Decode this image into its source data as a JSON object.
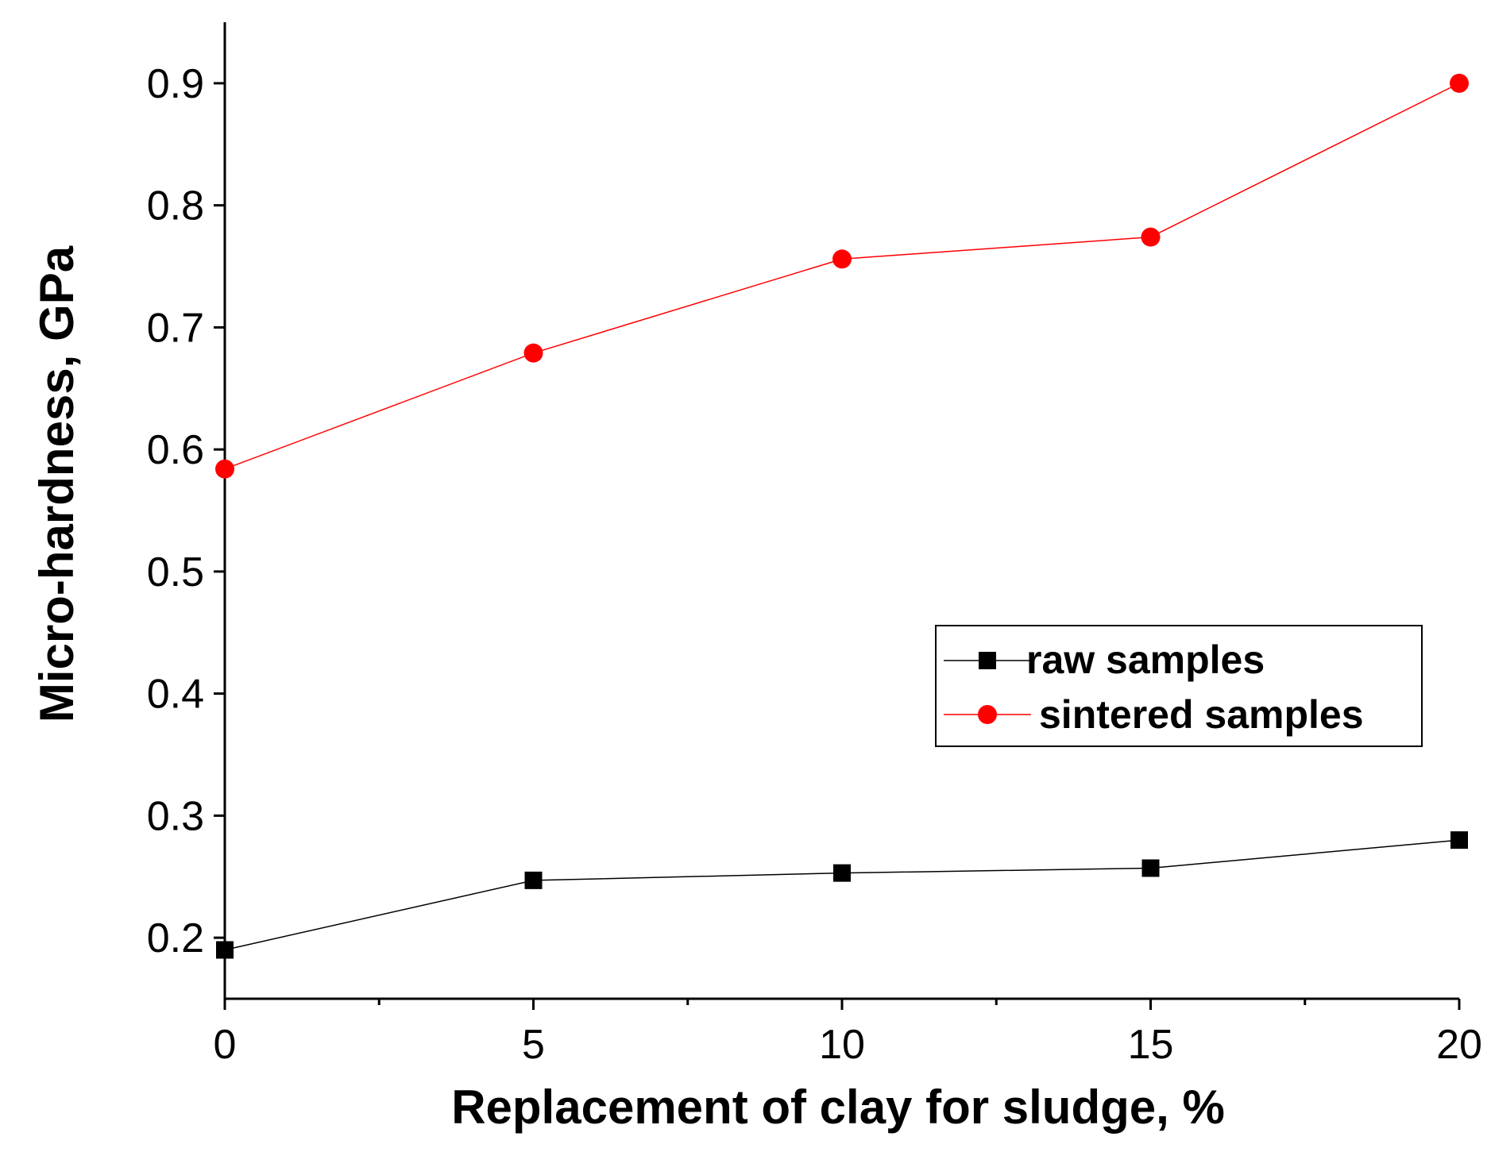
{
  "chart_data": {
    "type": "line",
    "title": "",
    "xlabel": "Replacement of clay for sludge, %",
    "ylabel": "Micro-hardness, GPa",
    "x": [
      0,
      5,
      10,
      15,
      20
    ],
    "xlim": [
      0,
      20
    ],
    "ylim": [
      0.15,
      0.95
    ],
    "x_ticks": [
      0,
      5,
      10,
      15,
      20
    ],
    "x_tick_labels": [
      "0",
      "5",
      "10",
      "15",
      "20"
    ],
    "x_minor_ticks": [
      2.5,
      7.5,
      12.5,
      17.5
    ],
    "y_ticks": [
      0.2,
      0.3,
      0.4,
      0.5,
      0.6,
      0.7,
      0.8,
      0.9
    ],
    "y_tick_labels": [
      "0.2",
      "0.3",
      "0.4",
      "0.5",
      "0.6",
      "0.7",
      "0.8",
      "0.9"
    ],
    "grid": false,
    "legend_position": "center-right",
    "series": [
      {
        "name": "raw samples",
        "marker": "square",
        "color": "#000000",
        "values": [
          0.19,
          0.247,
          0.253,
          0.257,
          0.28
        ]
      },
      {
        "name": "sintered samples",
        "marker": "circle",
        "color": "#ff0000",
        "values": [
          0.584,
          0.679,
          0.756,
          0.774,
          0.9
        ]
      }
    ]
  }
}
